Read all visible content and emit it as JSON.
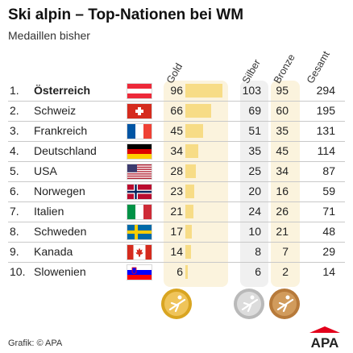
{
  "header": {
    "title": "Ski alpin – Top-Nationen bei WM",
    "subtitle": "Medaillen bisher"
  },
  "columns": [
    "Gold",
    "Silber",
    "Bronze",
    "Gesamt"
  ],
  "colors": {
    "gold_bar": "#f7dc86",
    "gold_panel": "#fbf3dd",
    "grey_panel": "#f0f0f0",
    "divider": "#c9c9c9",
    "logo_red": "#e3001b"
  },
  "chart_data": {
    "type": "table",
    "title": "Ski alpin – Top-Nationen bei WM",
    "subtitle": "Medaillen bisher",
    "columns": [
      "Gold",
      "Silber",
      "Bronze",
      "Gesamt"
    ],
    "bar_column": "Gold",
    "rows": [
      {
        "rank": "1.",
        "country": "Österreich",
        "gold": 96,
        "silver": 103,
        "bronze": 95,
        "total": 294,
        "flag": "at-flag"
      },
      {
        "rank": "2.",
        "country": "Schweiz",
        "gold": 66,
        "silver": 69,
        "bronze": 60,
        "total": 195,
        "flag": "ch-flag"
      },
      {
        "rank": "3.",
        "country": "Frankreich",
        "gold": 45,
        "silver": 51,
        "bronze": 35,
        "total": 131,
        "flag": "fr-flag"
      },
      {
        "rank": "4.",
        "country": "Deutschland",
        "gold": 34,
        "silver": 35,
        "bronze": 45,
        "total": 114,
        "flag": "de-flag"
      },
      {
        "rank": "5.",
        "country": "USA",
        "gold": 28,
        "silver": 25,
        "bronze": 34,
        "total": 87,
        "flag": "us-flag"
      },
      {
        "rank": "6.",
        "country": "Norwegen",
        "gold": 23,
        "silver": 20,
        "bronze": 16,
        "total": 59,
        "flag": "no-flag"
      },
      {
        "rank": "7.",
        "country": "Italien",
        "gold": 21,
        "silver": 24,
        "bronze": 26,
        "total": 71,
        "flag": "it-flag"
      },
      {
        "rank": "8.",
        "country": "Schweden",
        "gold": 17,
        "silver": 10,
        "bronze": 21,
        "total": 48,
        "flag": "se-flag"
      },
      {
        "rank": "9.",
        "country": "Kanada",
        "gold": 14,
        "silver": 8,
        "bronze": 7,
        "total": 29,
        "flag": "ca-flag"
      },
      {
        "rank": "10.",
        "country": "Slowenien",
        "gold": 6,
        "silver": 6,
        "bronze": 2,
        "total": 14,
        "flag": "si-flag"
      }
    ]
  },
  "medals": [
    "gold-medal-icon",
    "silver-medal-icon",
    "bronze-medal-icon"
  ],
  "footer": {
    "credit": "Grafik: © APA"
  },
  "logo": {
    "text": "APA"
  }
}
